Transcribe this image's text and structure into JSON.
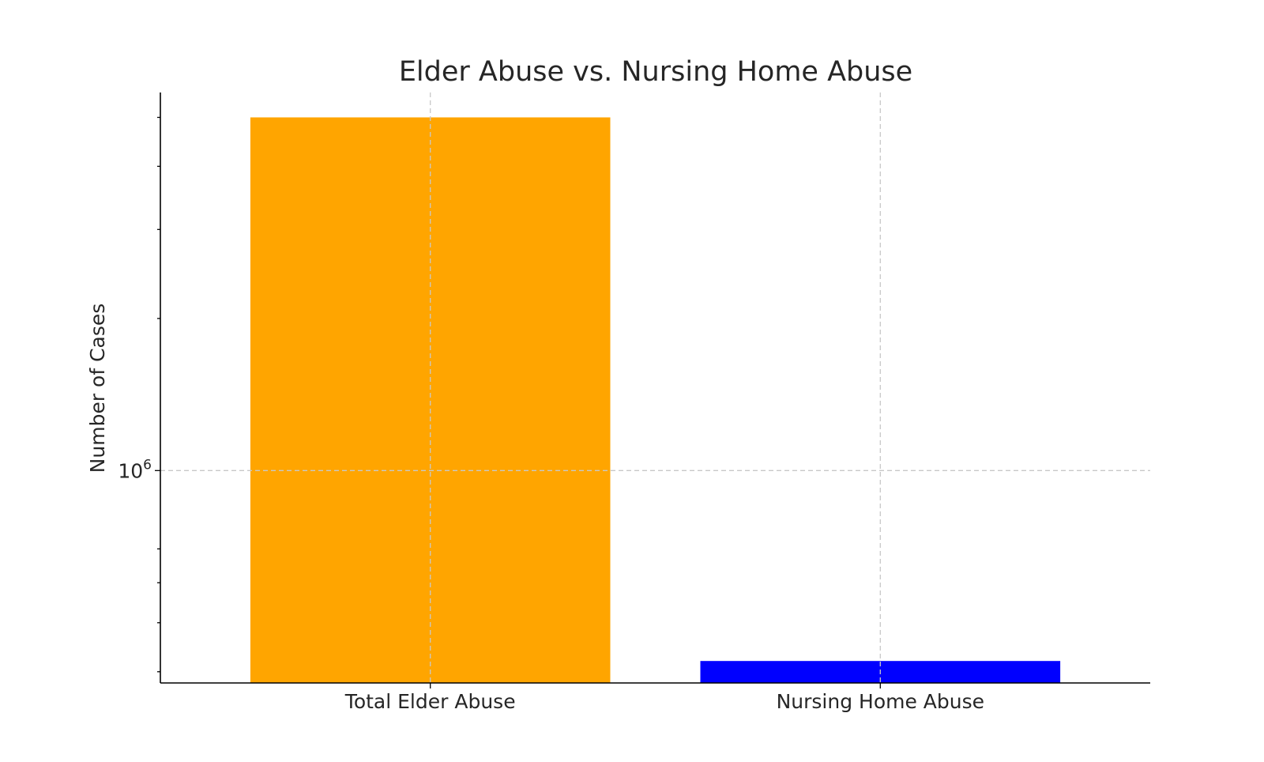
{
  "chart_data": {
    "type": "bar",
    "title": "Elder Abuse vs. Nursing Home Abuse",
    "xlabel": "",
    "ylabel": "Number of Cases",
    "yscale": "log",
    "ylim": [
      380000,
      5600000
    ],
    "grid": true,
    "legend": "none",
    "categories": [
      "Total Elder Abuse",
      "Nursing Home Abuse"
    ],
    "values": [
      5000000,
      420000
    ],
    "colors": [
      "#FFA500",
      "#0000FF"
    ],
    "y_major_ticks": [
      {
        "value": 1000000,
        "base": "10",
        "exponent": "6"
      }
    ],
    "y_minor_ticks": [
      400000,
      500000,
      600000,
      700000,
      2000000,
      3000000,
      4000000,
      5000000
    ]
  }
}
